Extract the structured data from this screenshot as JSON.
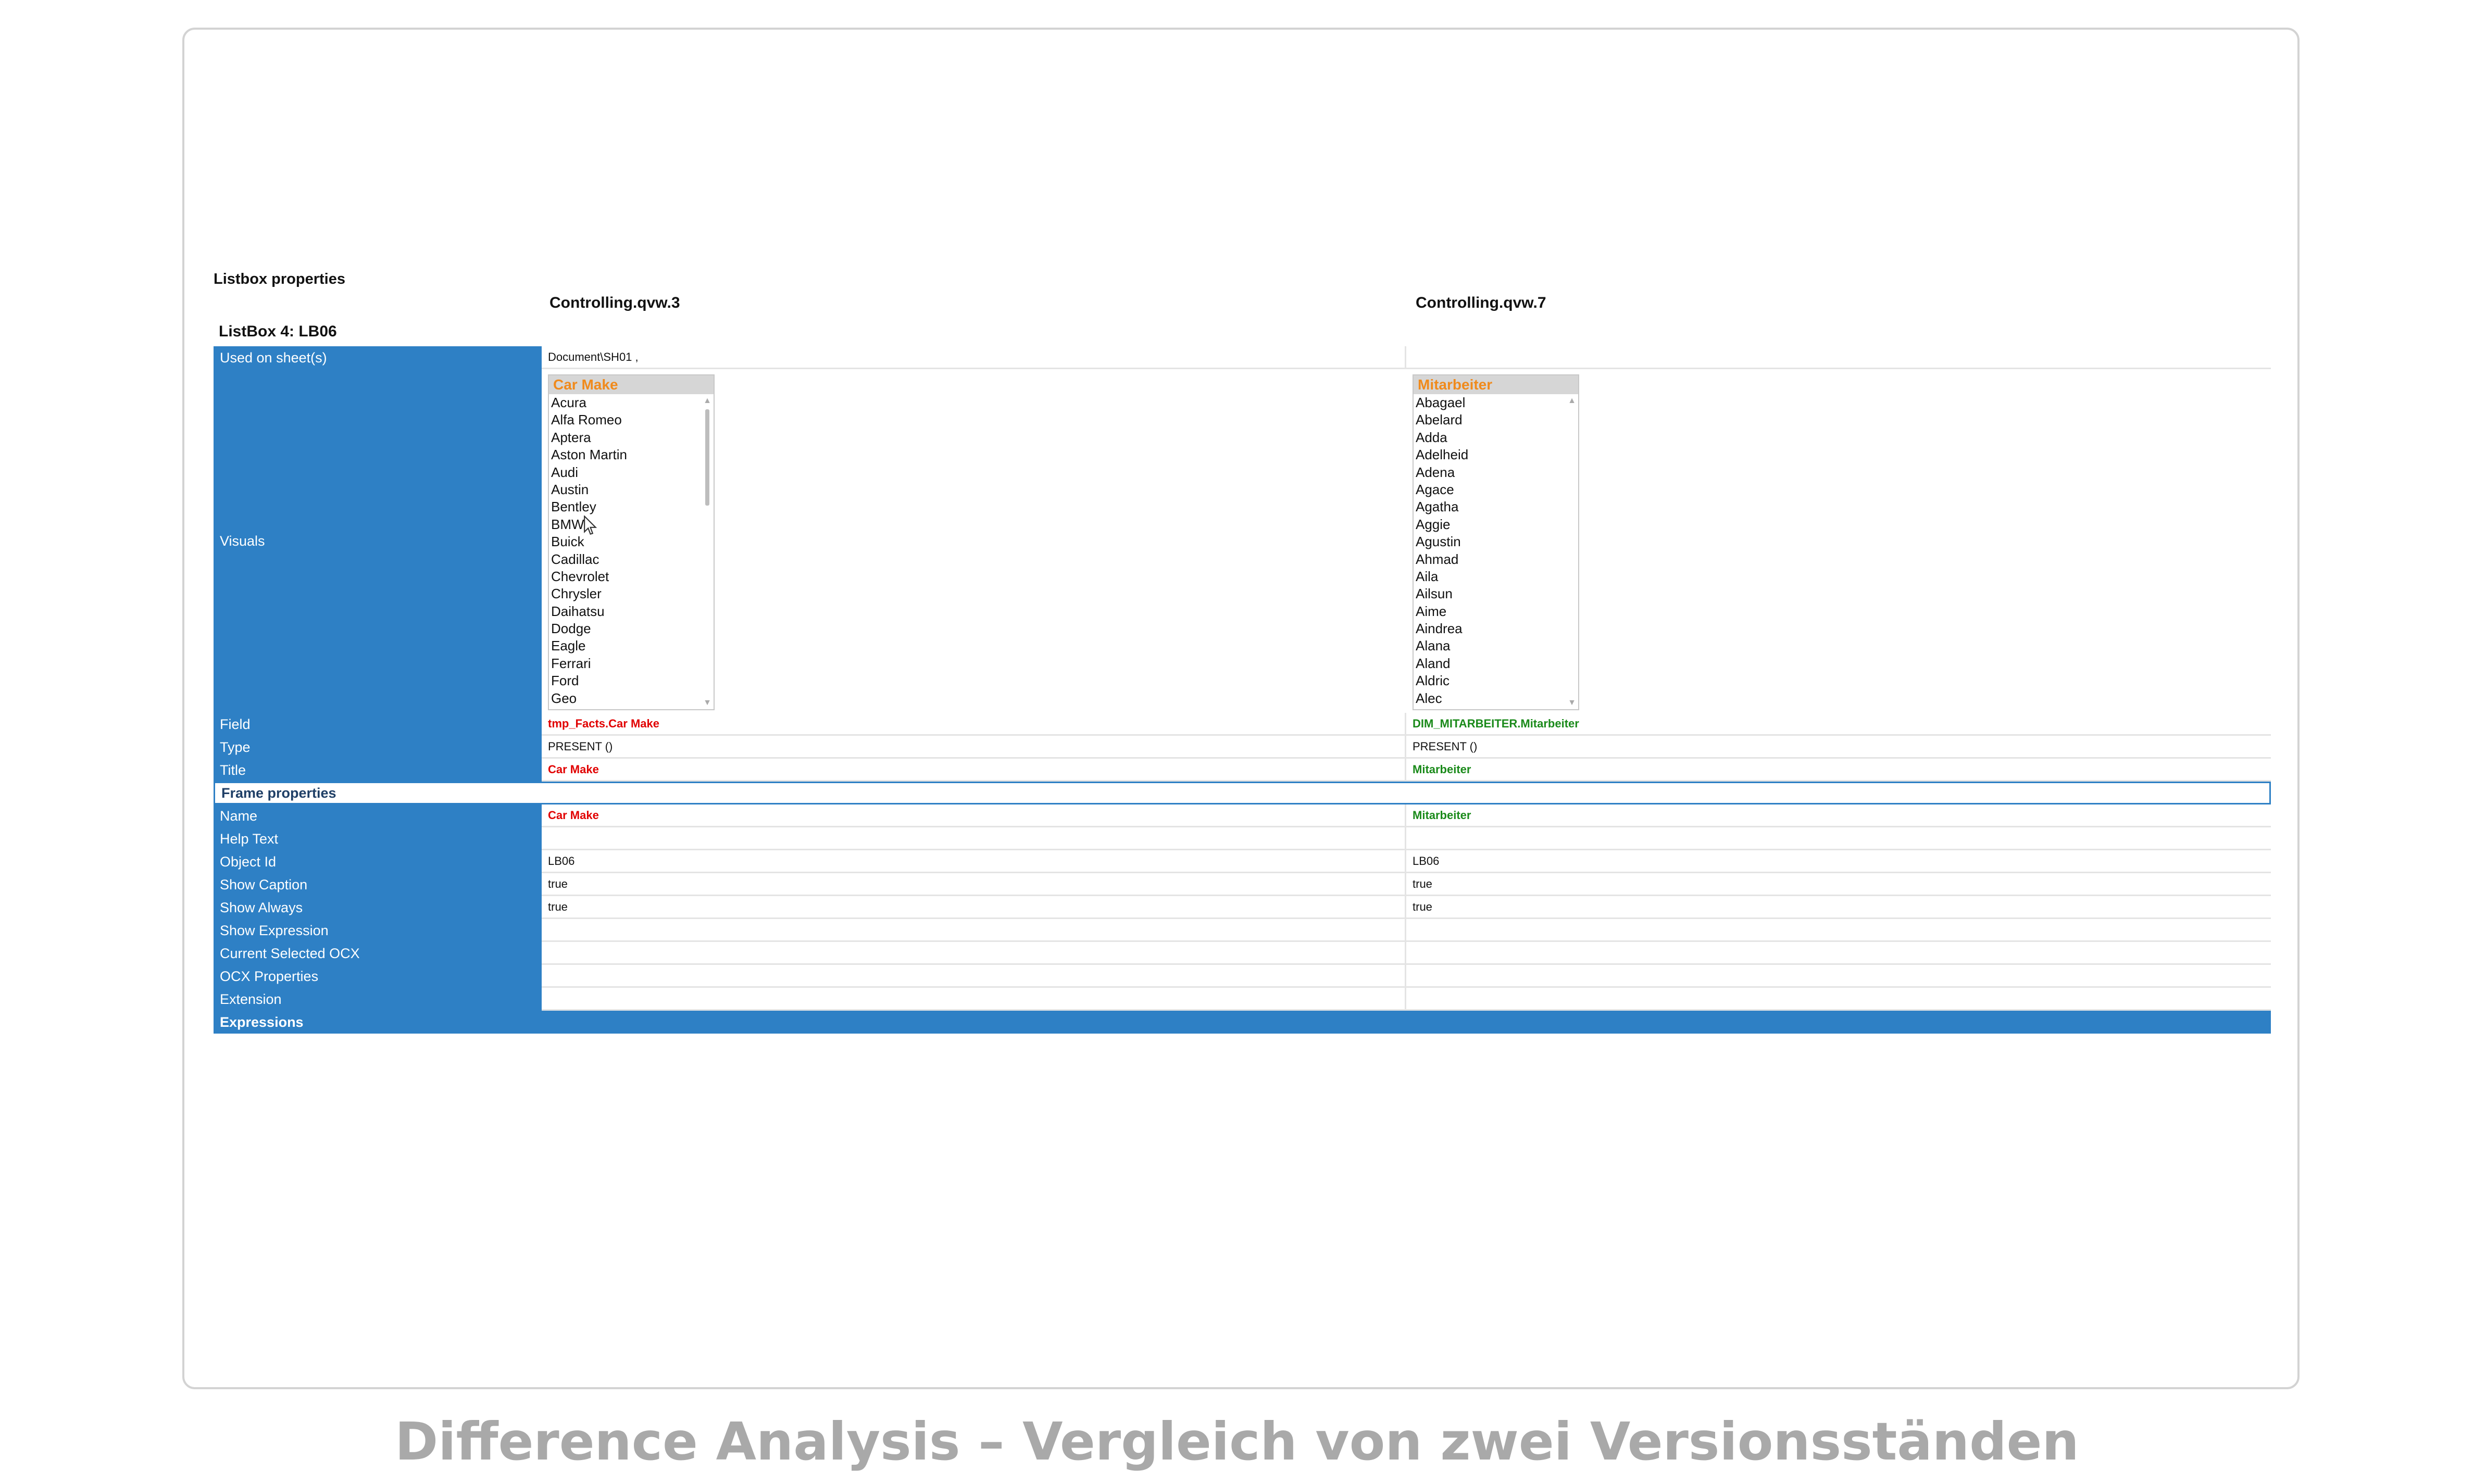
{
  "report": {
    "title": "Listbox properties",
    "left_file": "Controlling.qvw.3",
    "right_file": "Controlling.qvw.7",
    "object_header": "ListBox 4: LB06"
  },
  "rows": {
    "used_on_sheets": {
      "label": "Used on sheet(s)",
      "left": "Document\\SH01 ,",
      "right": ""
    },
    "visuals": {
      "label": "Visuals"
    },
    "field": {
      "label": "Field",
      "left": "tmp_Facts.Car Make",
      "right": "DIM_MITARBEITER.Mitarbeiter"
    },
    "type": {
      "label": "Type",
      "left": "PRESENT ()",
      "right": "PRESENT ()"
    },
    "title": {
      "label": "Title",
      "left": "Car Make",
      "right": "Mitarbeiter"
    },
    "frame_properties": {
      "label": "Frame properties"
    },
    "name": {
      "label": "Name",
      "left": "Car Make",
      "right": "Mitarbeiter"
    },
    "help_text": {
      "label": "Help Text",
      "left": "",
      "right": ""
    },
    "object_id": {
      "label": "Object Id",
      "left": "LB06",
      "right": "LB06"
    },
    "show_caption": {
      "label": "Show Caption",
      "left": "true",
      "right": "true"
    },
    "show_always": {
      "label": "Show Always",
      "left": "true",
      "right": "true"
    },
    "show_expression": {
      "label": "Show Expression",
      "left": "",
      "right": ""
    },
    "current_selected_ocx": {
      "label": "Current Selected OCX",
      "left": "",
      "right": ""
    },
    "ocx_properties": {
      "label": "OCX Properties",
      "left": "",
      "right": ""
    },
    "extension": {
      "label": "Extension",
      "left": "",
      "right": ""
    },
    "expressions": {
      "label": "Expressions"
    }
  },
  "listbox_left": {
    "caption": "Car Make",
    "items": [
      "Acura",
      "Alfa Romeo",
      "Aptera",
      "Aston Martin",
      "Audi",
      "Austin",
      "Bentley",
      "BMW",
      "Buick",
      "Cadillac",
      "Chevrolet",
      "Chrysler",
      "Daihatsu",
      "Dodge",
      "Eagle",
      "Ferrari",
      "Ford",
      "Geo"
    ]
  },
  "listbox_right": {
    "caption": "Mitarbeiter",
    "items": [
      "Abagael",
      "Abelard",
      "Adda",
      "Adelheid",
      "Adena",
      "Agace",
      "Agatha",
      "Aggie",
      "Agustin",
      "Ahmad",
      "Aila",
      "Ailsun",
      "Aime",
      "Aindrea",
      "Alana",
      "Aland",
      "Aldric",
      "Alec"
    ]
  },
  "colors": {
    "label_bg": "#2e80c5",
    "left_highlight": "#e10000",
    "right_highlight": "#1a8a1a",
    "caption_text": "#f08a1c"
  },
  "footer": {
    "caption": "Difference Analysis – Vergleich von zwei Versionsständen"
  }
}
